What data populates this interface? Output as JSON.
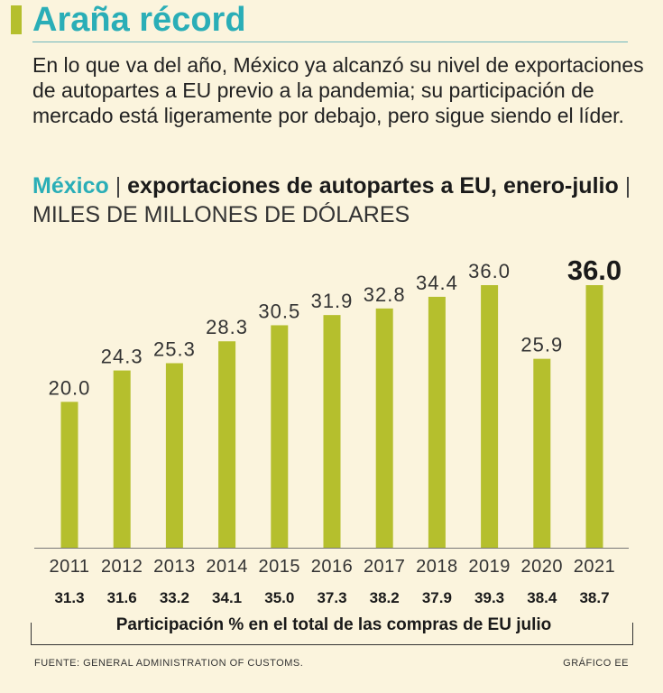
{
  "colors": {
    "accent": "#b5bf2d",
    "teal": "#2aaeb7",
    "bar": "#b5bf2d",
    "background": "#fbf4dd",
    "text": "#222222"
  },
  "header": {
    "title": "Araña récord",
    "intro": "En lo que va del año, México ya alcanzó su nivel de exportaciones de autopartes a EU previo a la pandemia; su participación de mercado está ligeramente por debajo, pero sigue siendo el líder."
  },
  "chart_title": {
    "country": "México",
    "sep1": " | ",
    "metric": "exportaciones de autopartes a EU, enero-julio",
    "sep2": " | ",
    "unit": "MILES DE MILLONES DE DÓLARES"
  },
  "chart_data": {
    "type": "bar",
    "title": "México | exportaciones de autopartes a EU, enero-julio",
    "ylabel": "MILES DE MILLONES DE DÓLARES",
    "xlabel": "",
    "categories": [
      "2011",
      "2012",
      "2013",
      "2014",
      "2015",
      "2016",
      "2017",
      "2018",
      "2019",
      "2020",
      "2021"
    ],
    "values": [
      20.0,
      24.3,
      25.3,
      28.3,
      30.5,
      31.9,
      32.8,
      34.4,
      36.0,
      25.9,
      36.0
    ],
    "value_labels": [
      "20.0",
      "24.3",
      "25.3",
      "28.3",
      "30.5",
      "31.9",
      "32.8",
      "34.4",
      "36.0",
      "25.9",
      "36.0"
    ],
    "highlight_index": 10,
    "ylim": [
      0,
      36
    ],
    "grid": false,
    "secondary_row": {
      "label": "Participación % en el total de las compras de EU julio",
      "values": [
        "31.3",
        "31.6",
        "33.2",
        "34.1",
        "35.0",
        "37.3",
        "38.2",
        "37.9",
        "39.3",
        "38.4",
        "38.7"
      ]
    }
  },
  "footer": {
    "source": "FUENTE: GENERAL ADMINISTRATION OF CUSTOMS.",
    "credit": "GRÁFICO EE"
  }
}
